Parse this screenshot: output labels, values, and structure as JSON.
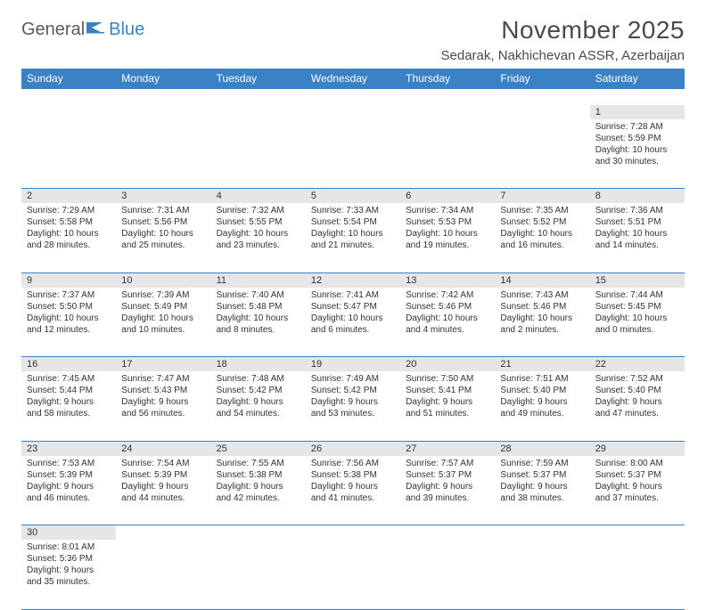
{
  "logo": {
    "part1": "General",
    "part2": "Blue"
  },
  "title": "November 2025",
  "location": "Sedarak, Nakhichevan ASSR, Azerbaijan",
  "dayHeaders": [
    "Sunday",
    "Monday",
    "Tuesday",
    "Wednesday",
    "Thursday",
    "Friday",
    "Saturday"
  ],
  "colors": {
    "headerBg": "#3a82c4",
    "headerText": "#ffffff",
    "dayNumBg": "#e6e6e6",
    "border": "#3a82c4",
    "titleText": "#4a4a4a",
    "bodyText": "#333333"
  },
  "weeks": [
    [
      null,
      null,
      null,
      null,
      null,
      null,
      {
        "n": "1",
        "sr": "Sunrise: 7:28 AM",
        "ss": "Sunset: 5:59 PM",
        "dl": "Daylight: 10 hours and 30 minutes."
      }
    ],
    [
      {
        "n": "2",
        "sr": "Sunrise: 7:29 AM",
        "ss": "Sunset: 5:58 PM",
        "dl": "Daylight: 10 hours and 28 minutes."
      },
      {
        "n": "3",
        "sr": "Sunrise: 7:31 AM",
        "ss": "Sunset: 5:56 PM",
        "dl": "Daylight: 10 hours and 25 minutes."
      },
      {
        "n": "4",
        "sr": "Sunrise: 7:32 AM",
        "ss": "Sunset: 5:55 PM",
        "dl": "Daylight: 10 hours and 23 minutes."
      },
      {
        "n": "5",
        "sr": "Sunrise: 7:33 AM",
        "ss": "Sunset: 5:54 PM",
        "dl": "Daylight: 10 hours and 21 minutes."
      },
      {
        "n": "6",
        "sr": "Sunrise: 7:34 AM",
        "ss": "Sunset: 5:53 PM",
        "dl": "Daylight: 10 hours and 19 minutes."
      },
      {
        "n": "7",
        "sr": "Sunrise: 7:35 AM",
        "ss": "Sunset: 5:52 PM",
        "dl": "Daylight: 10 hours and 16 minutes."
      },
      {
        "n": "8",
        "sr": "Sunrise: 7:36 AM",
        "ss": "Sunset: 5:51 PM",
        "dl": "Daylight: 10 hours and 14 minutes."
      }
    ],
    [
      {
        "n": "9",
        "sr": "Sunrise: 7:37 AM",
        "ss": "Sunset: 5:50 PM",
        "dl": "Daylight: 10 hours and 12 minutes."
      },
      {
        "n": "10",
        "sr": "Sunrise: 7:39 AM",
        "ss": "Sunset: 5:49 PM",
        "dl": "Daylight: 10 hours and 10 minutes."
      },
      {
        "n": "11",
        "sr": "Sunrise: 7:40 AM",
        "ss": "Sunset: 5:48 PM",
        "dl": "Daylight: 10 hours and 8 minutes."
      },
      {
        "n": "12",
        "sr": "Sunrise: 7:41 AM",
        "ss": "Sunset: 5:47 PM",
        "dl": "Daylight: 10 hours and 6 minutes."
      },
      {
        "n": "13",
        "sr": "Sunrise: 7:42 AM",
        "ss": "Sunset: 5:46 PM",
        "dl": "Daylight: 10 hours and 4 minutes."
      },
      {
        "n": "14",
        "sr": "Sunrise: 7:43 AM",
        "ss": "Sunset: 5:46 PM",
        "dl": "Daylight: 10 hours and 2 minutes."
      },
      {
        "n": "15",
        "sr": "Sunrise: 7:44 AM",
        "ss": "Sunset: 5:45 PM",
        "dl": "Daylight: 10 hours and 0 minutes."
      }
    ],
    [
      {
        "n": "16",
        "sr": "Sunrise: 7:45 AM",
        "ss": "Sunset: 5:44 PM",
        "dl": "Daylight: 9 hours and 58 minutes."
      },
      {
        "n": "17",
        "sr": "Sunrise: 7:47 AM",
        "ss": "Sunset: 5:43 PM",
        "dl": "Daylight: 9 hours and 56 minutes."
      },
      {
        "n": "18",
        "sr": "Sunrise: 7:48 AM",
        "ss": "Sunset: 5:42 PM",
        "dl": "Daylight: 9 hours and 54 minutes."
      },
      {
        "n": "19",
        "sr": "Sunrise: 7:49 AM",
        "ss": "Sunset: 5:42 PM",
        "dl": "Daylight: 9 hours and 53 minutes."
      },
      {
        "n": "20",
        "sr": "Sunrise: 7:50 AM",
        "ss": "Sunset: 5:41 PM",
        "dl": "Daylight: 9 hours and 51 minutes."
      },
      {
        "n": "21",
        "sr": "Sunrise: 7:51 AM",
        "ss": "Sunset: 5:40 PM",
        "dl": "Daylight: 9 hours and 49 minutes."
      },
      {
        "n": "22",
        "sr": "Sunrise: 7:52 AM",
        "ss": "Sunset: 5:40 PM",
        "dl": "Daylight: 9 hours and 47 minutes."
      }
    ],
    [
      {
        "n": "23",
        "sr": "Sunrise: 7:53 AM",
        "ss": "Sunset: 5:39 PM",
        "dl": "Daylight: 9 hours and 46 minutes."
      },
      {
        "n": "24",
        "sr": "Sunrise: 7:54 AM",
        "ss": "Sunset: 5:39 PM",
        "dl": "Daylight: 9 hours and 44 minutes."
      },
      {
        "n": "25",
        "sr": "Sunrise: 7:55 AM",
        "ss": "Sunset: 5:38 PM",
        "dl": "Daylight: 9 hours and 42 minutes."
      },
      {
        "n": "26",
        "sr": "Sunrise: 7:56 AM",
        "ss": "Sunset: 5:38 PM",
        "dl": "Daylight: 9 hours and 41 minutes."
      },
      {
        "n": "27",
        "sr": "Sunrise: 7:57 AM",
        "ss": "Sunset: 5:37 PM",
        "dl": "Daylight: 9 hours and 39 minutes."
      },
      {
        "n": "28",
        "sr": "Sunrise: 7:59 AM",
        "ss": "Sunset: 5:37 PM",
        "dl": "Daylight: 9 hours and 38 minutes."
      },
      {
        "n": "29",
        "sr": "Sunrise: 8:00 AM",
        "ss": "Sunset: 5:37 PM",
        "dl": "Daylight: 9 hours and 37 minutes."
      }
    ],
    [
      {
        "n": "30",
        "sr": "Sunrise: 8:01 AM",
        "ss": "Sunset: 5:36 PM",
        "dl": "Daylight: 9 hours and 35 minutes."
      },
      null,
      null,
      null,
      null,
      null,
      null
    ]
  ]
}
